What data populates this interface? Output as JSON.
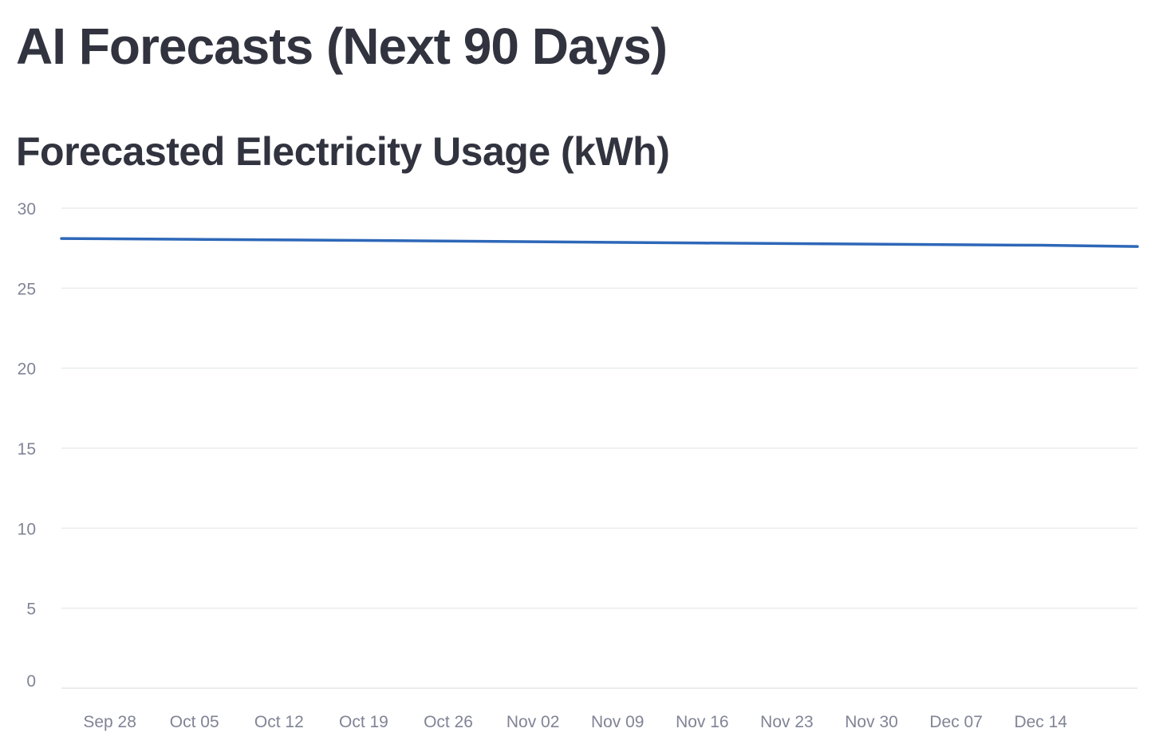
{
  "page": {
    "title": "AI Forecasts (Next 90 Days)"
  },
  "chart_data": {
    "type": "line",
    "title": "Forecasted Electricity Usage (kWh)",
    "xlabel": "",
    "ylabel": "",
    "ylim": [
      0,
      30
    ],
    "xlim": [
      "2025-09-24",
      "2025-12-22"
    ],
    "y_ticks": [
      0,
      5,
      10,
      15,
      20,
      25,
      30
    ],
    "x_ticks": [
      {
        "date": "2025-09-28",
        "label": "Sep 28"
      },
      {
        "date": "2025-10-05",
        "label": "Oct 05"
      },
      {
        "date": "2025-10-12",
        "label": "Oct 12"
      },
      {
        "date": "2025-10-19",
        "label": "Oct 19"
      },
      {
        "date": "2025-10-26",
        "label": "Oct 26"
      },
      {
        "date": "2025-11-02",
        "label": "Nov 02"
      },
      {
        "date": "2025-11-09",
        "label": "Nov 09"
      },
      {
        "date": "2025-11-16",
        "label": "Nov 16"
      },
      {
        "date": "2025-11-23",
        "label": "Nov 23"
      },
      {
        "date": "2025-11-30",
        "label": "Nov 30"
      },
      {
        "date": "2025-12-07",
        "label": "Dec 07"
      },
      {
        "date": "2025-12-14",
        "label": "Dec 14"
      }
    ],
    "grid": true,
    "legend": "none",
    "series": [
      {
        "color": "#2e67b8",
        "points": [
          {
            "x": "2025-09-24",
            "y": 28.1
          },
          {
            "x": "2025-10-05",
            "y": 28.05
          },
          {
            "x": "2025-10-19",
            "y": 27.98
          },
          {
            "x": "2025-11-02",
            "y": 27.9
          },
          {
            "x": "2025-11-16",
            "y": 27.82
          },
          {
            "x": "2025-11-30",
            "y": 27.75
          },
          {
            "x": "2025-12-14",
            "y": 27.68
          },
          {
            "x": "2025-12-22",
            "y": 27.6
          }
        ]
      }
    ]
  }
}
